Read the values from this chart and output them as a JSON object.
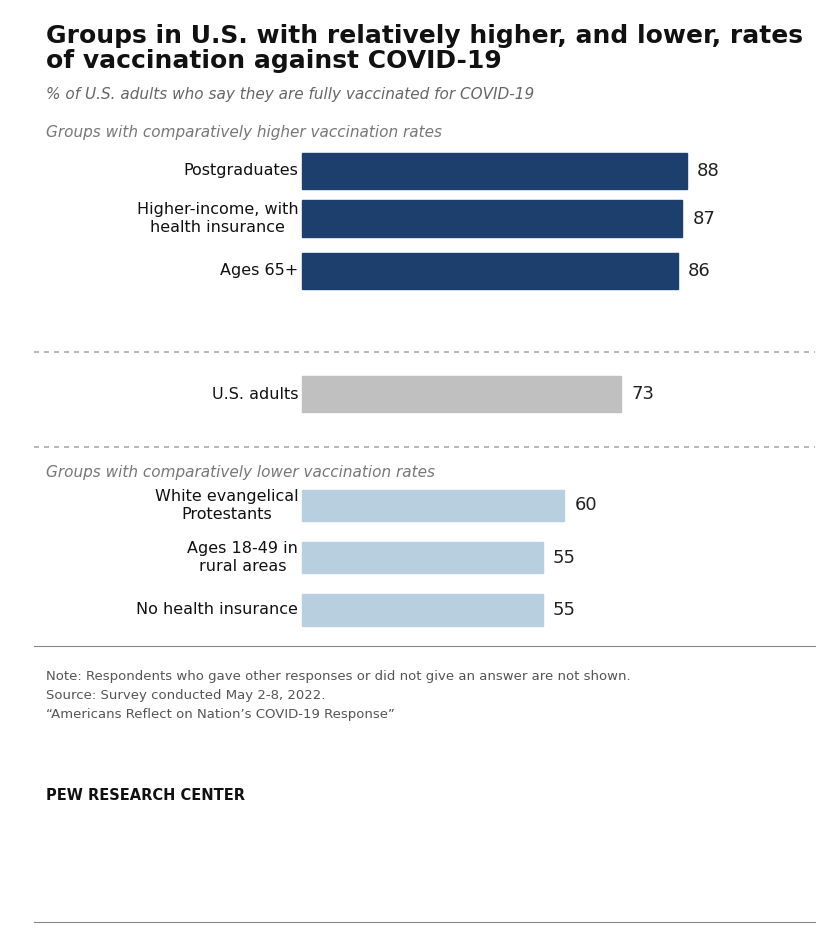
{
  "title_line1": "Groups in U.S. with relatively higher, and lower, rates",
  "title_line2": "of vaccination against COVID-19",
  "subtitle": "% of U.S. adults who say they are fully vaccinated for COVID-19",
  "section_higher_label": "Groups with comparatively higher vaccination rates",
  "section_lower_label": "Groups with comparatively lower vaccination rates",
  "higher_categories": [
    "Postgraduates",
    "Higher-income, with\nhealth insurance",
    "Ages 65+"
  ],
  "higher_values": [
    88,
    87,
    86
  ],
  "higher_color": "#1c3f6e",
  "middle_category": "U.S. adults",
  "middle_value": 73,
  "middle_color": "#c0c0c0",
  "lower_categories": [
    "White evangelical\nProtestants",
    "Ages 18-49 in\nrural areas",
    "No health insurance"
  ],
  "lower_values": [
    60,
    55,
    55
  ],
  "lower_color": "#b8cfe0",
  "note_text": "Note: Respondents who gave other responses or did not give an answer are not shown.\nSource: Survey conducted May 2-8, 2022.\n“Americans Reflect on Nation’s COVID-19 Response”",
  "footer": "PEW RESEARCH CENTER",
  "background_color": "#ffffff",
  "xmax": 100
}
